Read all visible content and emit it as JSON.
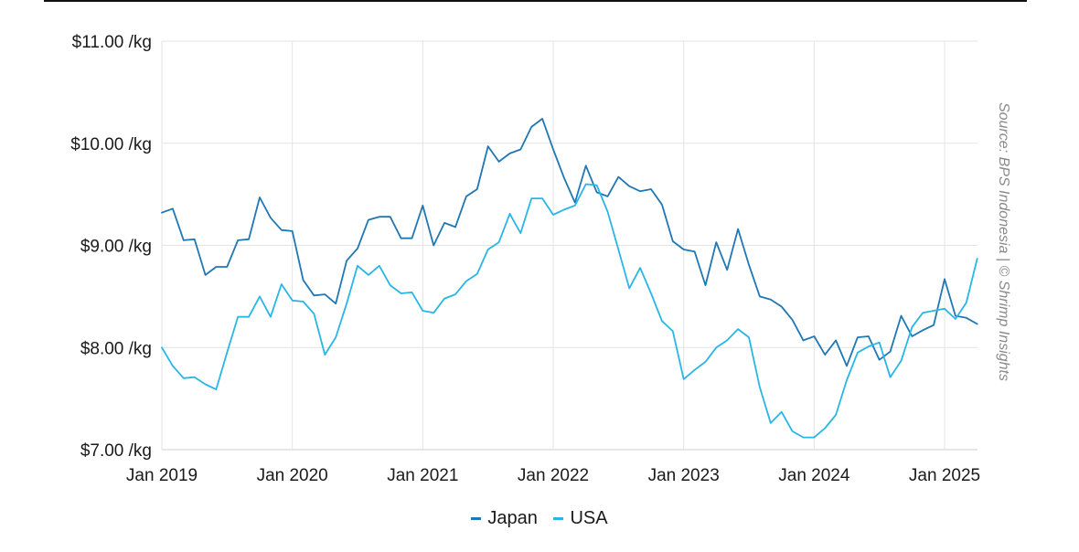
{
  "chart_data": {
    "type": "line",
    "source": "Source: BPS Indonesia | © Shrimp Insights",
    "ylim": [
      7.0,
      11.0
    ],
    "yticks": [
      {
        "value": 7,
        "label": "$7.00 /kg"
      },
      {
        "value": 8,
        "label": "$8.00 /kg"
      },
      {
        "value": 9,
        "label": "$9.00 /kg"
      },
      {
        "value": 10,
        "label": "$10.00 /kg"
      },
      {
        "value": 11,
        "label": "$11.00 /kg"
      }
    ],
    "xticks": [
      "Jan 2019",
      "Jan 2020",
      "Jan 2021",
      "Jan 2022",
      "Jan 2023",
      "Jan 2024",
      "Jan 2025"
    ],
    "x_start": "Jan 2019",
    "x_end": "Apr 2025",
    "legend_position": "bottom-center",
    "grid": true,
    "series": [
      {
        "name": "Japan",
        "color": "#1f77b4",
        "values": [
          9.32,
          9.36,
          9.05,
          9.06,
          8.71,
          8.79,
          8.79,
          9.05,
          9.06,
          9.47,
          9.27,
          9.15,
          9.14,
          8.66,
          8.51,
          8.52,
          8.43,
          8.85,
          8.97,
          9.25,
          9.28,
          9.28,
          9.07,
          9.07,
          9.39,
          9.0,
          9.22,
          9.18,
          9.48,
          9.55,
          9.97,
          9.82,
          9.9,
          9.94,
          10.16,
          10.24,
          9.94,
          9.66,
          9.42,
          9.78,
          9.52,
          9.48,
          9.67,
          9.58,
          9.53,
          9.55,
          9.4,
          9.04,
          8.96,
          8.94,
          8.61,
          9.03,
          8.76,
          9.16,
          8.81,
          8.5,
          8.47,
          8.4,
          8.27,
          8.07,
          8.11,
          7.93,
          8.07,
          7.82,
          8.1,
          8.11,
          7.88,
          7.96,
          8.31,
          8.11,
          8.17,
          8.22,
          8.67,
          8.31,
          8.29,
          8.23
        ]
      },
      {
        "name": "USA",
        "color": "#29b6e6",
        "values": [
          8.0,
          7.82,
          7.7,
          7.71,
          7.64,
          7.59,
          7.95,
          8.3,
          8.3,
          8.5,
          8.3,
          8.62,
          8.46,
          8.45,
          8.33,
          7.93,
          8.1,
          8.43,
          8.8,
          8.71,
          8.8,
          8.61,
          8.53,
          8.54,
          8.36,
          8.34,
          8.48,
          8.52,
          8.65,
          8.72,
          8.96,
          9.03,
          9.31,
          9.12,
          9.46,
          9.46,
          9.3,
          9.35,
          9.39,
          9.6,
          9.59,
          9.33,
          8.96,
          8.58,
          8.78,
          8.53,
          8.26,
          8.16,
          7.69,
          7.78,
          7.86,
          8.0,
          8.07,
          8.18,
          8.1,
          7.61,
          7.26,
          7.37,
          7.18,
          7.12,
          7.12,
          7.21,
          7.34,
          7.68,
          7.95,
          8.01,
          8.05,
          7.71,
          7.87,
          8.2,
          8.34,
          8.36,
          8.38,
          8.28,
          8.44,
          8.87
        ]
      }
    ]
  }
}
